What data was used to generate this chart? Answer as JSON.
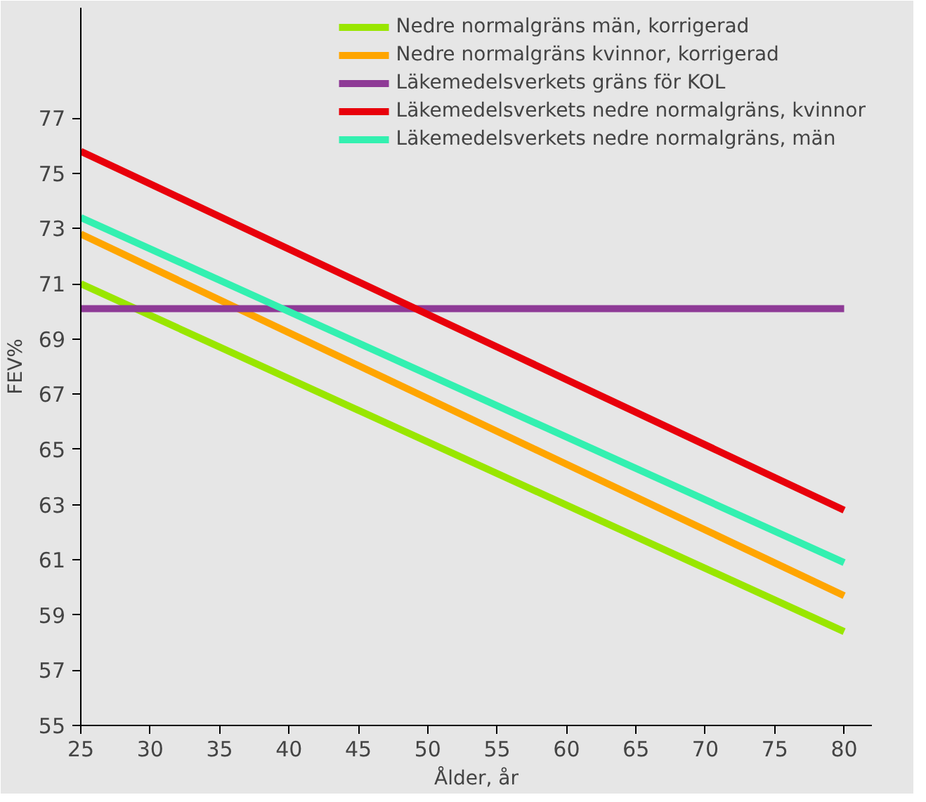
{
  "chart_data": {
    "type": "line",
    "xlabel": "Ålder, år",
    "ylabel": "FEV%",
    "x": [
      25,
      80
    ],
    "series": [
      {
        "name": "Nedre normalgräns män, korrigerad",
        "color": "#99e600",
        "values": [
          71.0,
          58.4
        ]
      },
      {
        "name": "Nedre normalgräns kvinnor, korrigerad",
        "color": "#ffa500",
        "values": [
          72.8,
          59.7
        ]
      },
      {
        "name": "Läkemedelsverkets gräns för KOL",
        "color": "#8e3a96",
        "values": [
          70.1,
          70.1
        ]
      },
      {
        "name": "Läkemedelsverkets nedre normalgräns, kvinnor",
        "color": "#e8000b",
        "values": [
          75.8,
          62.8
        ]
      },
      {
        "name": "Läkemedelsverkets nedre normalgräns, män",
        "color": "#33f0b0",
        "values": [
          73.4,
          60.9
        ]
      }
    ],
    "xlim": [
      25,
      82
    ],
    "ylim": [
      55,
      81
    ],
    "xticks": [
      25,
      30,
      35,
      40,
      45,
      50,
      55,
      60,
      65,
      70,
      75,
      80
    ],
    "yticks": [
      55,
      57,
      59,
      61,
      63,
      65,
      67,
      69,
      71,
      73,
      75,
      77
    ],
    "grid": false,
    "legend": "top right",
    "marker": "none",
    "line_style": "solid"
  }
}
